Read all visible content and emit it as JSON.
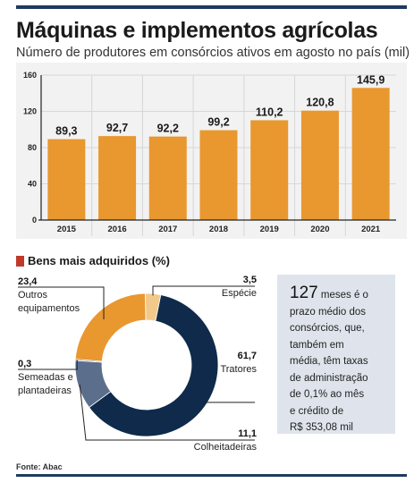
{
  "header": {
    "title": "Máquinas e implementos agrícolas",
    "subtitle": "Número de produtores em consórcios ativos em agosto no país (mil)"
  },
  "chart_data": [
    {
      "type": "bar",
      "categories": [
        "2015",
        "2016",
        "2017",
        "2018",
        "2019",
        "2020",
        "2021"
      ],
      "values": [
        89.3,
        92.7,
        92.2,
        99.2,
        110.2,
        120.8,
        145.9
      ],
      "value_labels": [
        "89,3",
        "92,7",
        "92,2",
        "99,2",
        "110,2",
        "120,8",
        "145,9"
      ],
      "yticks": [
        "0",
        "40",
        "80",
        "120",
        "160"
      ],
      "ylim": [
        0,
        160
      ],
      "grid": true,
      "color": "#e9972f"
    },
    {
      "type": "pie",
      "title": "Bens mais adquiridos (%)",
      "categories": [
        "Espécie",
        "Tratores",
        "Colheitadeiras",
        "Semeadas e plantadeiras",
        "Outros equipamentos"
      ],
      "label_lines": [
        [
          "Espécie"
        ],
        [
          "Tratores"
        ],
        [
          "Colheitadeiras"
        ],
        [
          "Semeadas e",
          "plantadeiras"
        ],
        [
          "Outros",
          "equipamentos"
        ]
      ],
      "values": [
        3.5,
        61.7,
        11.1,
        0.3,
        23.4
      ],
      "value_labels": [
        "3,5",
        "61,7",
        "11,1",
        "0,3",
        "23,4"
      ],
      "colors": [
        "#f2c98a",
        "#0f2a4a",
        "#5b6f8c",
        "#3f5676",
        "#e9972f"
      ]
    }
  ],
  "info_box": {
    "number": "127",
    "text_first": " meses é o",
    "lines": [
      "prazo médio dos",
      "consórcios, que,",
      "também em",
      "média, têm taxas",
      "de administração",
      "de 0,1% ao mês",
      "e crédito de",
      "R$ 353,08 mil"
    ]
  },
  "source": "Fonte: Abac",
  "colors": {
    "rule": "#1f3a5f",
    "marker": "#c0392b",
    "box": "#dfe4ec"
  }
}
